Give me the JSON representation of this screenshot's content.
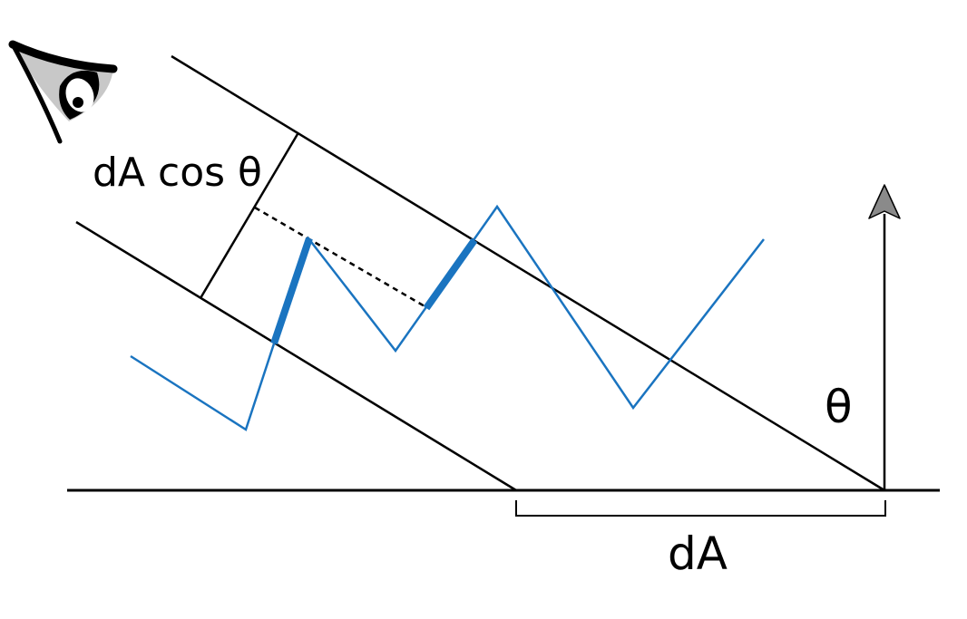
{
  "labels": {
    "projected_area": "dA cos θ",
    "angle": "θ",
    "area": "dA"
  },
  "icons": {
    "viewer": "eye-icon",
    "normal_arrow": "arrow-up-icon"
  },
  "colors": {
    "surface_profile": "#1a74c0",
    "lines": "#000000",
    "arrow_head": "#8a8a8a",
    "eye_fill": "#c8c8c8"
  }
}
